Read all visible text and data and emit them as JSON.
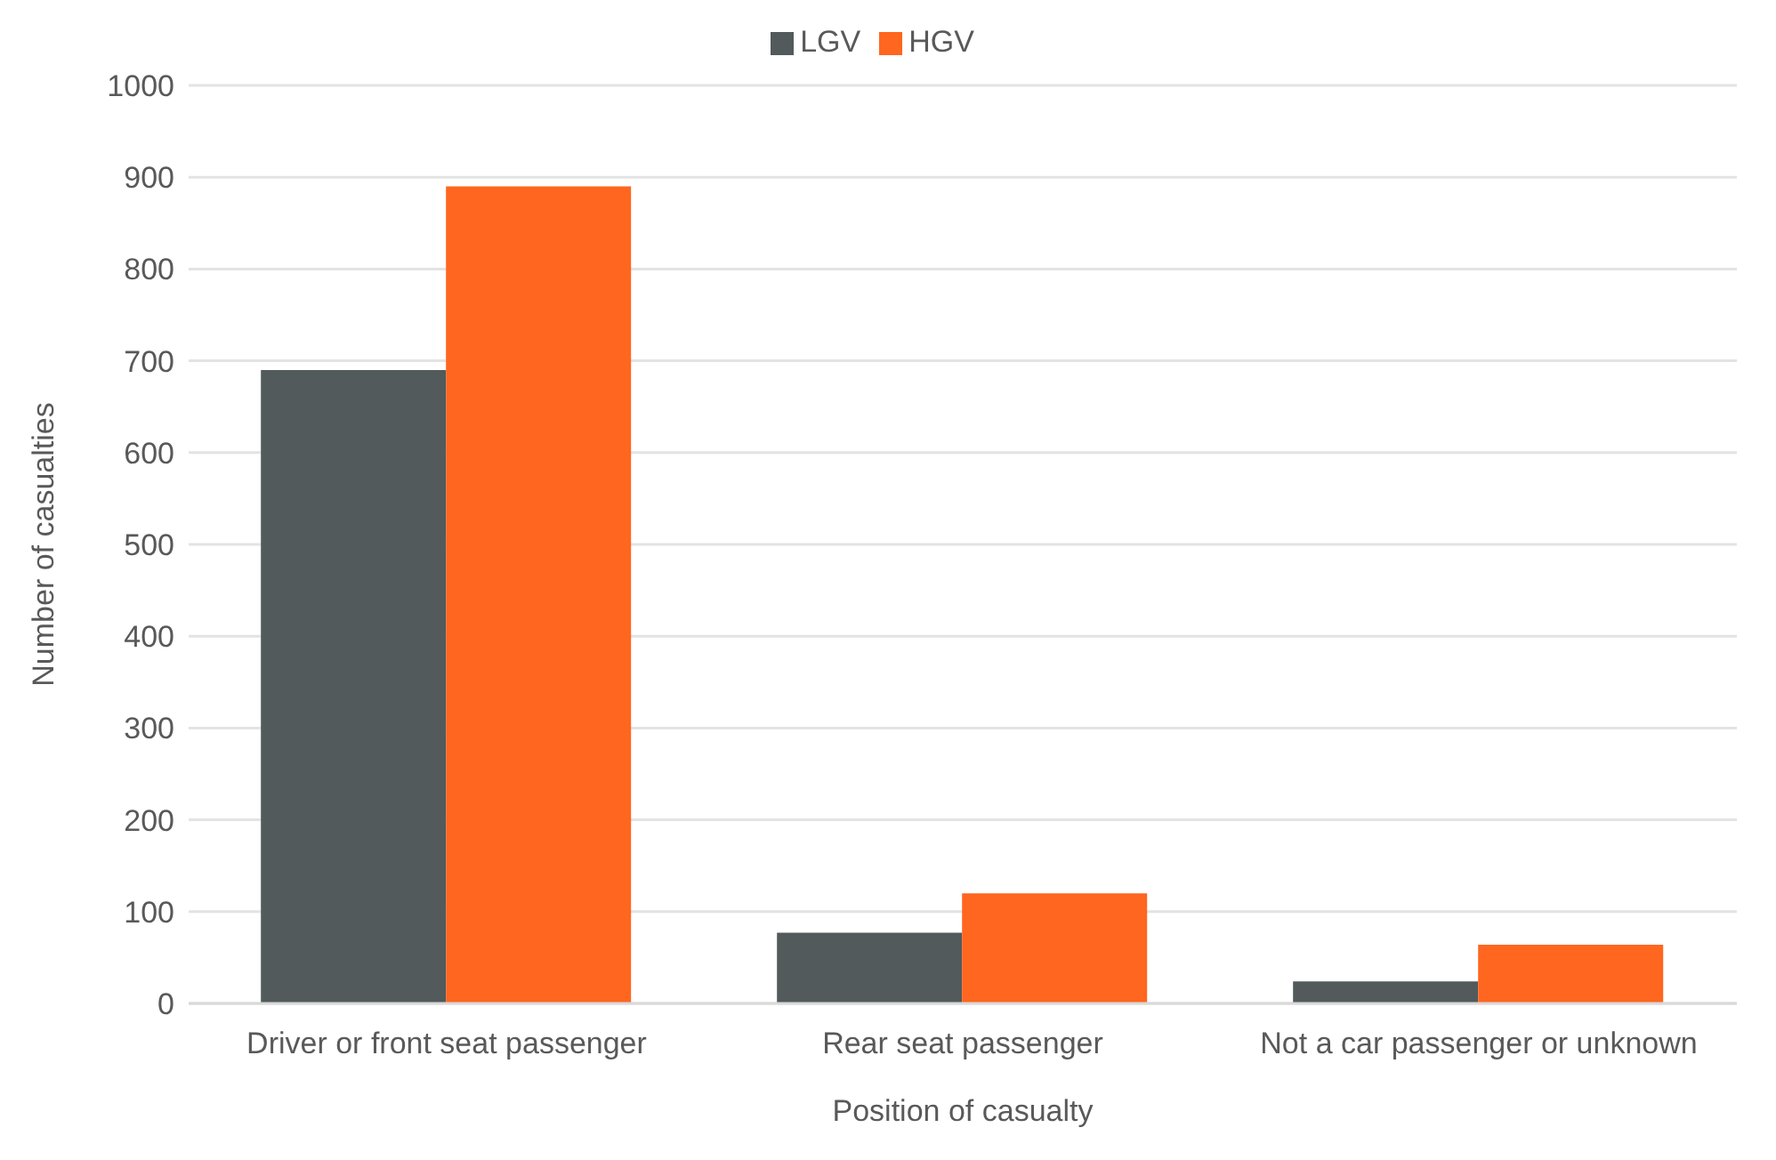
{
  "chart_data": {
    "type": "bar",
    "xlabel": "Position of casualty",
    "ylabel": "Number of casualties",
    "categories": [
      "Driver or front seat passenger",
      "Rear seat passenger",
      "Not a car passenger or unknown"
    ],
    "series": [
      {
        "name": "LGV",
        "color": "#525a5c",
        "values": [
          690,
          77,
          24
        ]
      },
      {
        "name": "HGV",
        "color": "#ff661f",
        "values": [
          890,
          120,
          64
        ]
      }
    ],
    "ylim": [
      0,
      1000
    ],
    "yticks": [
      0,
      100,
      200,
      300,
      400,
      500,
      600,
      700,
      800,
      900,
      1000
    ],
    "grid": "y",
    "legend": "top"
  }
}
